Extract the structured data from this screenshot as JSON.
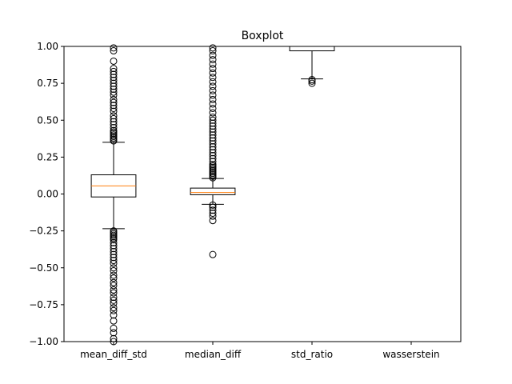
{
  "chart_data": {
    "type": "boxplot",
    "title": "Boxplot",
    "categories": [
      "mean_diff_std",
      "median_diff",
      "std_ratio",
      "wasserstein"
    ],
    "ylim": [
      -1.0,
      1.0
    ],
    "yticks": [
      -1.0,
      -0.75,
      -0.5,
      -0.25,
      0.0,
      0.25,
      0.5,
      0.75,
      1.0
    ],
    "ytick_labels": [
      "−1.00",
      "−0.75",
      "−0.50",
      "−0.25",
      "0.00",
      "0.25",
      "0.50",
      "0.75",
      "1.00"
    ],
    "grid": false,
    "colors": {
      "box": "#000000",
      "median": "#ff7f0e",
      "flier": "#000000"
    },
    "boxes": [
      {
        "name": "mean_diff_std",
        "q1": -0.02,
        "median": 0.055,
        "q3": 0.13,
        "whisker_low": -0.235,
        "whisker_high": 0.35,
        "fliers_high": [
          0.36,
          0.37,
          0.38,
          0.39,
          0.4,
          0.41,
          0.42,
          0.43,
          0.45,
          0.47,
          0.49,
          0.51,
          0.53,
          0.56,
          0.58,
          0.6,
          0.62,
          0.64,
          0.67,
          0.69,
          0.71,
          0.73,
          0.75,
          0.77,
          0.79,
          0.81,
          0.83,
          0.85,
          0.9,
          0.97,
          0.99
        ],
        "fliers_low": [
          -0.25,
          -0.26,
          -0.27,
          -0.28,
          -0.29,
          -0.3,
          -0.31,
          -0.33,
          -0.35,
          -0.37,
          -0.39,
          -0.41,
          -0.43,
          -0.45,
          -0.47,
          -0.5,
          -0.52,
          -0.55,
          -0.57,
          -0.6,
          -0.62,
          -0.65,
          -0.67,
          -0.7,
          -0.72,
          -0.74,
          -0.77,
          -0.79,
          -0.82,
          -0.86,
          -0.91,
          -0.94,
          -0.98,
          -1.0
        ]
      },
      {
        "name": "median_diff",
        "q1": -0.005,
        "median": 0.01,
        "q3": 0.04,
        "whisker_low": -0.07,
        "whisker_high": 0.105,
        "fliers_high": [
          0.11,
          0.12,
          0.13,
          0.14,
          0.15,
          0.16,
          0.17,
          0.18,
          0.19,
          0.2,
          0.22,
          0.24,
          0.26,
          0.28,
          0.3,
          0.32,
          0.34,
          0.36,
          0.38,
          0.4,
          0.42,
          0.44,
          0.46,
          0.48,
          0.5,
          0.52,
          0.55,
          0.58,
          0.61,
          0.64,
          0.67,
          0.7,
          0.73,
          0.76,
          0.79,
          0.82,
          0.85,
          0.88,
          0.91,
          0.94,
          0.97,
          0.99
        ],
        "fliers_low": [
          -0.075,
          -0.09,
          -0.11,
          -0.13,
          -0.15,
          -0.18,
          -0.41
        ]
      },
      {
        "name": "std_ratio",
        "q1": 0.97,
        "median": 1.0,
        "q3": 1.0,
        "whisker_low": 0.78,
        "whisker_high": 1.0,
        "fliers_high": [],
        "fliers_low": [
          0.775,
          0.765,
          0.75
        ]
      },
      {
        "name": "wasserstein",
        "empty": true
      }
    ]
  }
}
